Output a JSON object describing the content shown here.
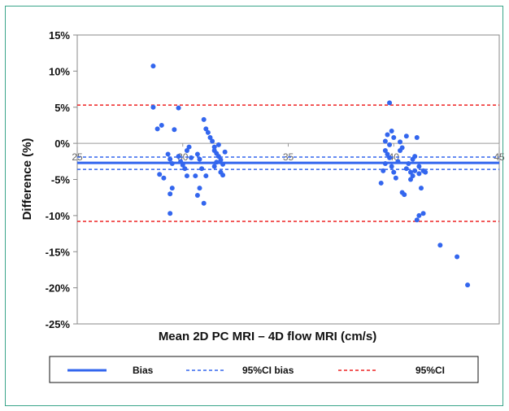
{
  "chart_data": {
    "type": "scatter",
    "title": "",
    "xlabel": "Mean 2D PC MRI – 4D flow MRI (cm/s)",
    "ylabel": "Difference (%)",
    "xlim": [
      25,
      45
    ],
    "ylim": [
      -25,
      15
    ],
    "x_ticks": [
      "25",
      "30",
      "35",
      "40",
      "45"
    ],
    "y_ticks": [
      "15%",
      "10%",
      "5%",
      "0%",
      "-5%",
      "-10%",
      "-15%",
      "-20%",
      "-25%"
    ],
    "x_tick_values": [
      25,
      30,
      35,
      40,
      45
    ],
    "y_tick_values": [
      15,
      10,
      5,
      0,
      -5,
      -10,
      -15,
      -20,
      -25
    ],
    "grid": false,
    "legend_position": "bottom",
    "lines": [
      {
        "name": "Bias",
        "y": -2.7,
        "color": "#3366ee",
        "style": "solid"
      },
      {
        "name": "95%CI bias",
        "y_lower": -3.6,
        "y_upper": -1.9,
        "color": "#3366ee",
        "style": "dashed"
      },
      {
        "name": "95%CI",
        "y_lower": -10.8,
        "y_upper": 5.3,
        "color": "#ee2222",
        "style": "dashed"
      }
    ],
    "series": [
      {
        "color": "#3366ee",
        "points": [
          [
            28.6,
            10.7
          ],
          [
            28.6,
            5.0
          ],
          [
            28.8,
            2.0
          ],
          [
            29.0,
            2.5
          ],
          [
            28.9,
            -4.3
          ],
          [
            29.1,
            -4.8
          ],
          [
            29.3,
            -1.5
          ],
          [
            29.4,
            -2.2
          ],
          [
            29.5,
            -2.8
          ],
          [
            29.4,
            -7.0
          ],
          [
            29.5,
            -6.2
          ],
          [
            29.4,
            -9.7
          ],
          [
            29.6,
            1.9
          ],
          [
            29.8,
            -1.8
          ],
          [
            29.9,
            -2.5
          ],
          [
            29.8,
            4.9
          ],
          [
            30.0,
            -3.0
          ],
          [
            30.1,
            -3.5
          ],
          [
            30.2,
            -1.0
          ],
          [
            30.3,
            -0.5
          ],
          [
            30.2,
            -4.5
          ],
          [
            30.4,
            -2.0
          ],
          [
            30.6,
            -4.5
          ],
          [
            30.7,
            -1.5
          ],
          [
            30.8,
            -2.2
          ],
          [
            30.9,
            -3.5
          ],
          [
            30.8,
            -6.2
          ],
          [
            30.7,
            -7.2
          ],
          [
            31.0,
            -8.3
          ],
          [
            31.1,
            -4.5
          ],
          [
            31.0,
            3.3
          ],
          [
            31.1,
            2.0
          ],
          [
            31.2,
            1.5
          ],
          [
            31.3,
            0.8
          ],
          [
            31.4,
            0.3
          ],
          [
            31.5,
            -0.5
          ],
          [
            31.5,
            -1.0
          ],
          [
            31.6,
            -1.4
          ],
          [
            31.7,
            -0.2
          ],
          [
            31.7,
            -1.8
          ],
          [
            31.8,
            -2.3
          ],
          [
            31.9,
            -2.9
          ],
          [
            31.8,
            -4.0
          ],
          [
            31.9,
            -4.4
          ],
          [
            32.0,
            -1.2
          ],
          [
            31.6,
            -2.6
          ],
          [
            31.5,
            -3.2
          ],
          [
            39.8,
            5.6
          ],
          [
            39.7,
            1.2
          ],
          [
            39.6,
            0.3
          ],
          [
            39.8,
            -0.2
          ],
          [
            39.9,
            1.7
          ],
          [
            40.0,
            0.8
          ],
          [
            39.7,
            -1.5
          ],
          [
            39.8,
            -2.0
          ],
          [
            39.6,
            -2.8
          ],
          [
            39.5,
            -3.8
          ],
          [
            39.4,
            -5.5
          ],
          [
            39.9,
            -3.2
          ],
          [
            40.0,
            -4.0
          ],
          [
            40.1,
            -4.8
          ],
          [
            40.2,
            -2.5
          ],
          [
            40.3,
            -1.0
          ],
          [
            40.3,
            0.2
          ],
          [
            40.4,
            -0.6
          ],
          [
            40.4,
            -6.8
          ],
          [
            40.5,
            -7.1
          ],
          [
            40.6,
            -3.5
          ],
          [
            40.7,
            -2.8
          ],
          [
            40.8,
            -4.0
          ],
          [
            40.8,
            -5.0
          ],
          [
            40.9,
            -4.5
          ],
          [
            41.0,
            -3.8
          ],
          [
            41.0,
            -1.8
          ],
          [
            41.1,
            0.8
          ],
          [
            41.2,
            -3.2
          ],
          [
            41.2,
            -4.2
          ],
          [
            41.3,
            -6.2
          ],
          [
            41.2,
            -10.0
          ],
          [
            41.1,
            -10.6
          ],
          [
            41.4,
            -3.8
          ],
          [
            41.5,
            -4.0
          ],
          [
            39.6,
            -1.0
          ],
          [
            40.6,
            1.0
          ],
          [
            40.9,
            -2.2
          ],
          [
            41.4,
            -9.7
          ],
          [
            42.2,
            -14.1
          ],
          [
            43.0,
            -15.7
          ],
          [
            43.5,
            -19.6
          ]
        ]
      }
    ]
  },
  "legend": {
    "bias_label": "Bias",
    "ci_bias_label": "95%CI bias",
    "ci_label": "95%CI"
  }
}
